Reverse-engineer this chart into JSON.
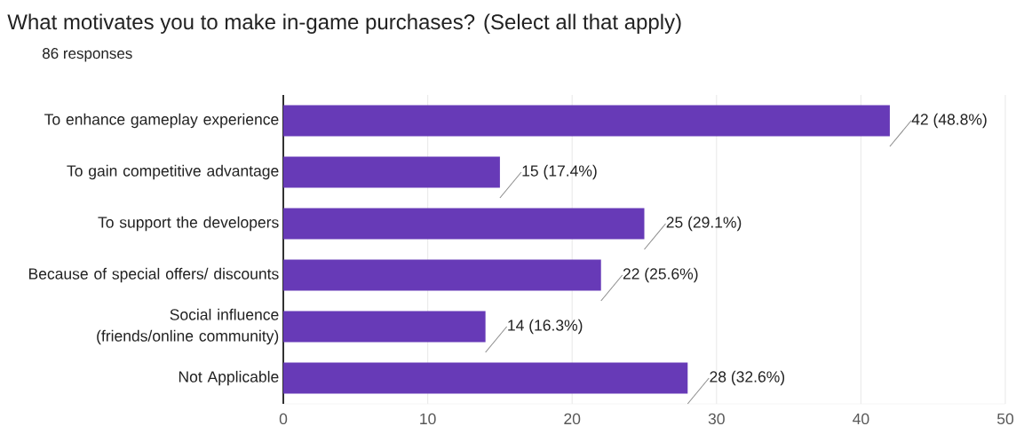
{
  "chart_data": {
    "type": "bar",
    "orientation": "horizontal",
    "title": "What motivates you to make in-game purchases? (Select all that apply)",
    "subtitle": "86 responses",
    "categories": [
      "To enhance gameplay experience",
      "To gain competitive advantage",
      "To support the developers",
      "Because of special offers/ discounts",
      "Social influence (friends/online community)",
      "Not Applicable"
    ],
    "values": [
      42,
      15,
      25,
      22,
      14,
      28
    ],
    "value_labels": [
      "42 (48.8%)",
      "15 (17.4%)",
      "25 (29.1%)",
      "22 (25.6%)",
      "14 (16.3%)",
      "28 (32.6%)"
    ],
    "color": "#673ab7",
    "xlim": [
      0,
      50
    ],
    "xticks": [
      0,
      10,
      20,
      30,
      40,
      50
    ],
    "grid": "x"
  }
}
